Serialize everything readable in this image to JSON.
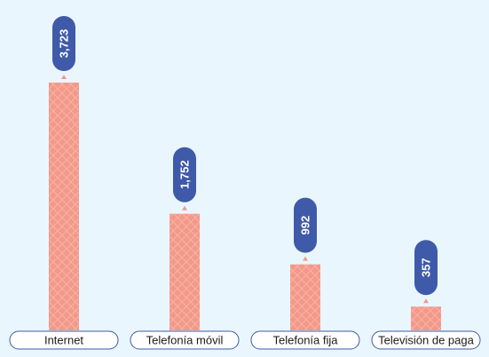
{
  "chart_data": {
    "type": "bar",
    "categories": [
      "Internet",
      "Telefonía móvil",
      "Telefonía fija",
      "Televisión de paga"
    ],
    "values": [
      3723,
      1752,
      992,
      357
    ],
    "value_labels": [
      "3,723",
      "1,752",
      "992",
      "357"
    ],
    "title": "",
    "xlabel": "",
    "ylabel": "",
    "ylim": [
      0,
      3723
    ],
    "grid": false,
    "legend": "none"
  },
  "colors": {
    "background": "#eaf6fd",
    "bar": "#f3998a",
    "bar_pattern": "#f8b9ad",
    "value_pill": "#3f5aa8",
    "value_text": "#ffffff",
    "arrow": "#f3998a",
    "label_border": "#3f5aa8",
    "label_fill": "#ffffff",
    "label_text": "#1a1a1a"
  }
}
